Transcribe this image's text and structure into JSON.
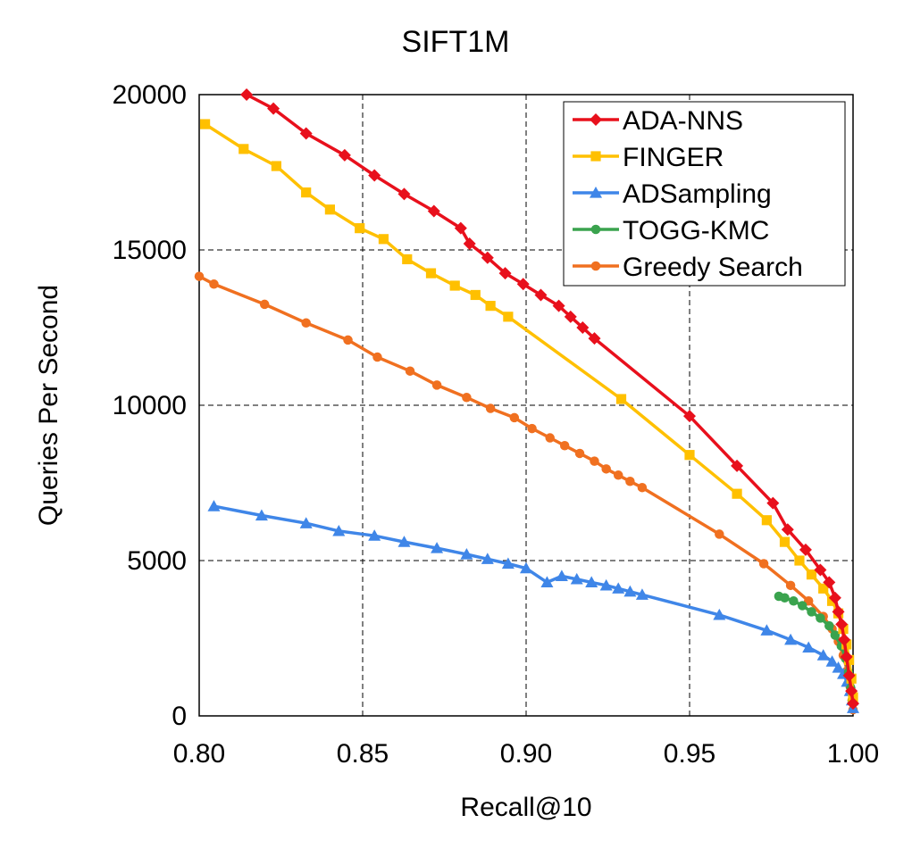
{
  "chart_data": {
    "type": "line",
    "title": "SIFT1M",
    "xlabel": "Recall@10",
    "ylabel": "Queries Per Second",
    "xlim": [
      0.8,
      1.0
    ],
    "ylim": [
      0,
      20000
    ],
    "xticks": [
      "0.80",
      "0.85",
      "0.90",
      "0.95",
      "1.00"
    ],
    "yticks": [
      "0",
      "5000",
      "10000",
      "15000",
      "20000"
    ],
    "grid": true,
    "legend_position": "top-right",
    "series": [
      {
        "name": "ADA-NNS",
        "color": "#e8101c",
        "marker": "diamond",
        "points": [
          [
            0.8145,
            20000
          ],
          [
            0.8227,
            19550
          ],
          [
            0.8327,
            18750
          ],
          [
            0.8445,
            18050
          ],
          [
            0.8536,
            17400
          ],
          [
            0.8627,
            16800
          ],
          [
            0.8718,
            16250
          ],
          [
            0.88,
            15700
          ],
          [
            0.8827,
            15200
          ],
          [
            0.8882,
            14750
          ],
          [
            0.8936,
            14250
          ],
          [
            0.8991,
            13900
          ],
          [
            0.9045,
            13550
          ],
          [
            0.91,
            13200
          ],
          [
            0.9136,
            12850
          ],
          [
            0.9173,
            12500
          ],
          [
            0.9209,
            12150
          ],
          [
            0.95,
            9650
          ],
          [
            0.9645,
            8050
          ],
          [
            0.9755,
            6850
          ],
          [
            0.98,
            6000
          ],
          [
            0.9855,
            5350
          ],
          [
            0.99,
            4700
          ],
          [
            0.9927,
            4300
          ],
          [
            0.9945,
            3800
          ],
          [
            0.9955,
            3350
          ],
          [
            0.9965,
            2950
          ],
          [
            0.9973,
            2450
          ],
          [
            0.998,
            1900
          ],
          [
            0.9988,
            1300
          ],
          [
            0.9995,
            800
          ],
          [
            1.0,
            400
          ]
        ]
      },
      {
        "name": "FINGER",
        "color": "#ffc000",
        "marker": "square",
        "points": [
          [
            0.8018,
            19050
          ],
          [
            0.8136,
            18250
          ],
          [
            0.8236,
            17700
          ],
          [
            0.8327,
            16850
          ],
          [
            0.84,
            16300
          ],
          [
            0.8491,
            15700
          ],
          [
            0.8564,
            15350
          ],
          [
            0.8636,
            14700
          ],
          [
            0.8709,
            14250
          ],
          [
            0.8782,
            13850
          ],
          [
            0.8845,
            13550
          ],
          [
            0.8891,
            13200
          ],
          [
            0.8945,
            12850
          ],
          [
            0.9291,
            10200
          ],
          [
            0.95,
            8400
          ],
          [
            0.9645,
            7150
          ],
          [
            0.9736,
            6300
          ],
          [
            0.9791,
            5600
          ],
          [
            0.9836,
            5000
          ],
          [
            0.9873,
            4550
          ],
          [
            0.9909,
            4100
          ],
          [
            0.9936,
            3700
          ],
          [
            0.9955,
            3300
          ],
          [
            0.997,
            2800
          ],
          [
            0.998,
            2300
          ],
          [
            0.9988,
            1800
          ],
          [
            0.9995,
            1200
          ],
          [
            1.0,
            600
          ]
        ]
      },
      {
        "name": "ADSampling",
        "color": "#3f86e8",
        "marker": "triangle",
        "points": [
          [
            0.8045,
            6750
          ],
          [
            0.8191,
            6450
          ],
          [
            0.8327,
            6200
          ],
          [
            0.8427,
            5950
          ],
          [
            0.8536,
            5800
          ],
          [
            0.8627,
            5600
          ],
          [
            0.8727,
            5400
          ],
          [
            0.8818,
            5200
          ],
          [
            0.8882,
            5050
          ],
          [
            0.8945,
            4900
          ],
          [
            0.9,
            4750
          ],
          [
            0.9064,
            4300
          ],
          [
            0.9109,
            4500
          ],
          [
            0.9155,
            4400
          ],
          [
            0.92,
            4300
          ],
          [
            0.9245,
            4200
          ],
          [
            0.9282,
            4100
          ],
          [
            0.9318,
            4000
          ],
          [
            0.9355,
            3900
          ],
          [
            0.9591,
            3250
          ],
          [
            0.9736,
            2750
          ],
          [
            0.9809,
            2450
          ],
          [
            0.9864,
            2200
          ],
          [
            0.9909,
            1950
          ],
          [
            0.9936,
            1750
          ],
          [
            0.9955,
            1550
          ],
          [
            0.997,
            1350
          ],
          [
            0.9982,
            1100
          ],
          [
            0.9991,
            800
          ],
          [
            0.9997,
            500
          ],
          [
            1.0,
            250
          ]
        ]
      },
      {
        "name": "TOGG-KMC",
        "color": "#3aa34e",
        "marker": "circle",
        "points": [
          [
            0.9773,
            3850
          ],
          [
            0.9791,
            3800
          ],
          [
            0.9818,
            3700
          ],
          [
            0.9845,
            3550
          ],
          [
            0.9873,
            3350
          ],
          [
            0.99,
            3150
          ],
          [
            0.9927,
            2900
          ],
          [
            0.9945,
            2600
          ],
          [
            0.9964,
            2250
          ],
          [
            0.9977,
            1850
          ],
          [
            0.9986,
            1400
          ],
          [
            0.9993,
            900
          ],
          [
            0.9998,
            500
          ]
        ]
      },
      {
        "name": "Greedy Search",
        "color": "#f07020",
        "marker": "circle",
        "points": [
          [
            0.8,
            14150
          ],
          [
            0.8045,
            13900
          ],
          [
            0.82,
            13250
          ],
          [
            0.8327,
            12650
          ],
          [
            0.8455,
            12100
          ],
          [
            0.8545,
            11550
          ],
          [
            0.8645,
            11100
          ],
          [
            0.8727,
            10650
          ],
          [
            0.8818,
            10250
          ],
          [
            0.8891,
            9900
          ],
          [
            0.8964,
            9600
          ],
          [
            0.9018,
            9250
          ],
          [
            0.9073,
            8950
          ],
          [
            0.9118,
            8700
          ],
          [
            0.9164,
            8450
          ],
          [
            0.9209,
            8200
          ],
          [
            0.9245,
            7950
          ],
          [
            0.9282,
            7750
          ],
          [
            0.9318,
            7550
          ],
          [
            0.9355,
            7350
          ],
          [
            0.9591,
            5850
          ],
          [
            0.9727,
            4900
          ],
          [
            0.9809,
            4200
          ],
          [
            0.9864,
            3700
          ],
          [
            0.9909,
            3200
          ],
          [
            0.9936,
            2800
          ],
          [
            0.9955,
            2400
          ],
          [
            0.997,
            1950
          ],
          [
            0.9982,
            1450
          ],
          [
            0.9991,
            950
          ],
          [
            0.9997,
            500
          ],
          [
            1.0,
            200
          ]
        ]
      }
    ]
  }
}
